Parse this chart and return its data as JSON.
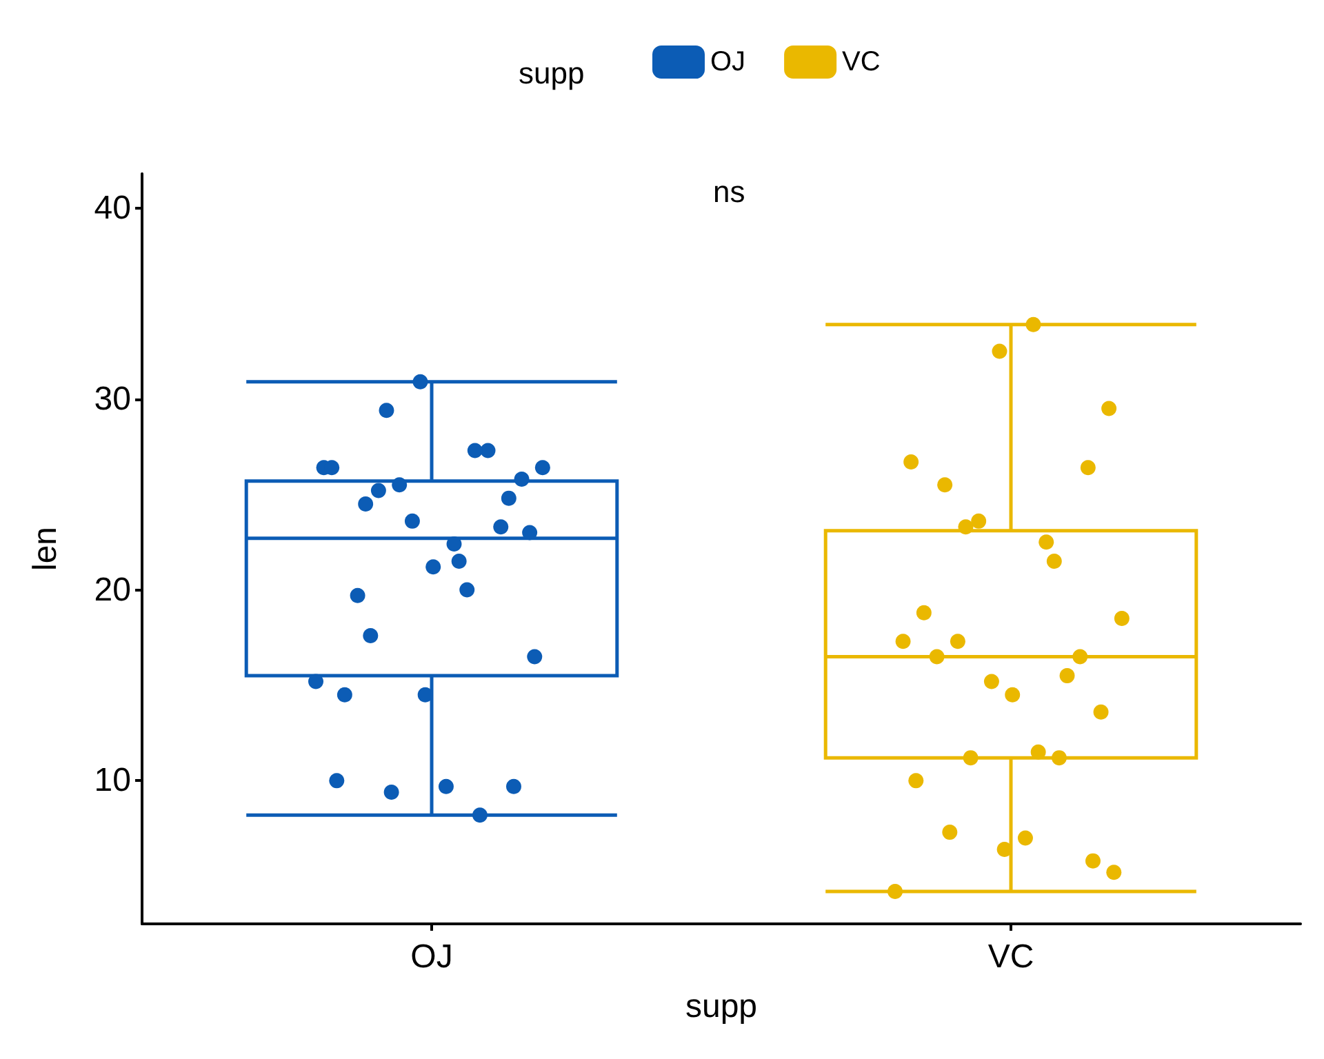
{
  "chart_data": {
    "type": "box",
    "categories": [
      "OJ",
      "VC"
    ],
    "xlabel": "supp",
    "ylabel": "len",
    "legend_title": "supp",
    "legend": "top",
    "grid": false,
    "marker": "circle",
    "annotations": [
      "ns"
    ],
    "ylim": [
      2.5,
      41.8
    ],
    "yticks": [
      10,
      20,
      30,
      40
    ],
    "series": [
      {
        "name": "OJ",
        "color": "#0c5cb5",
        "boxes": [
          {
            "low": 8.2,
            "q1": 15.5,
            "median": 22.7,
            "q3": 25.7,
            "high": 30.9
          },
          null
        ]
      },
      {
        "name": "VC",
        "color": "#eab800",
        "boxes": [
          null,
          {
            "low": 4.2,
            "q1": 11.2,
            "median": 16.5,
            "q3": 23.1,
            "high": 33.9
          }
        ]
      },
      {
        "type": "scatter",
        "color": "#0c5cb5",
        "x": [
          "OJ",
          "OJ",
          "OJ",
          "OJ",
          "OJ",
          "OJ",
          "OJ",
          "OJ",
          "OJ",
          "OJ",
          "OJ",
          "OJ",
          "OJ",
          "OJ",
          "OJ",
          "OJ",
          "OJ",
          "OJ",
          "OJ",
          "OJ",
          "OJ",
          "OJ",
          "OJ",
          "OJ",
          "OJ",
          "OJ",
          "OJ",
          "OJ",
          "OJ",
          "OJ"
        ],
        "values": [
          15.2,
          21.5,
          17.6,
          9.7,
          14.5,
          10.0,
          8.2,
          9.4,
          16.5,
          9.7,
          19.7,
          23.3,
          23.6,
          26.4,
          20.0,
          25.2,
          25.8,
          21.2,
          14.5,
          27.3,
          25.5,
          26.4,
          22.4,
          24.5,
          24.8,
          30.9,
          26.4,
          27.3,
          29.4,
          23.0
        ]
      },
      {
        "type": "scatter",
        "color": "#eab800",
        "x": [
          "VC",
          "VC",
          "VC",
          "VC",
          "VC",
          "VC",
          "VC",
          "VC",
          "VC",
          "VC",
          "VC",
          "VC",
          "VC",
          "VC",
          "VC",
          "VC",
          "VC",
          "VC",
          "VC",
          "VC",
          "VC",
          "VC",
          "VC",
          "VC",
          "VC",
          "VC",
          "VC",
          "VC",
          "VC",
          "VC"
        ],
        "values": [
          4.2,
          11.5,
          7.3,
          5.8,
          6.4,
          10.0,
          11.2,
          11.2,
          5.2,
          7.0,
          16.5,
          16.5,
          15.2,
          17.3,
          22.5,
          17.3,
          13.6,
          14.5,
          18.8,
          15.5,
          23.6,
          18.5,
          33.9,
          25.5,
          26.4,
          32.5,
          26.7,
          21.5,
          23.3,
          29.5
        ]
      }
    ]
  }
}
